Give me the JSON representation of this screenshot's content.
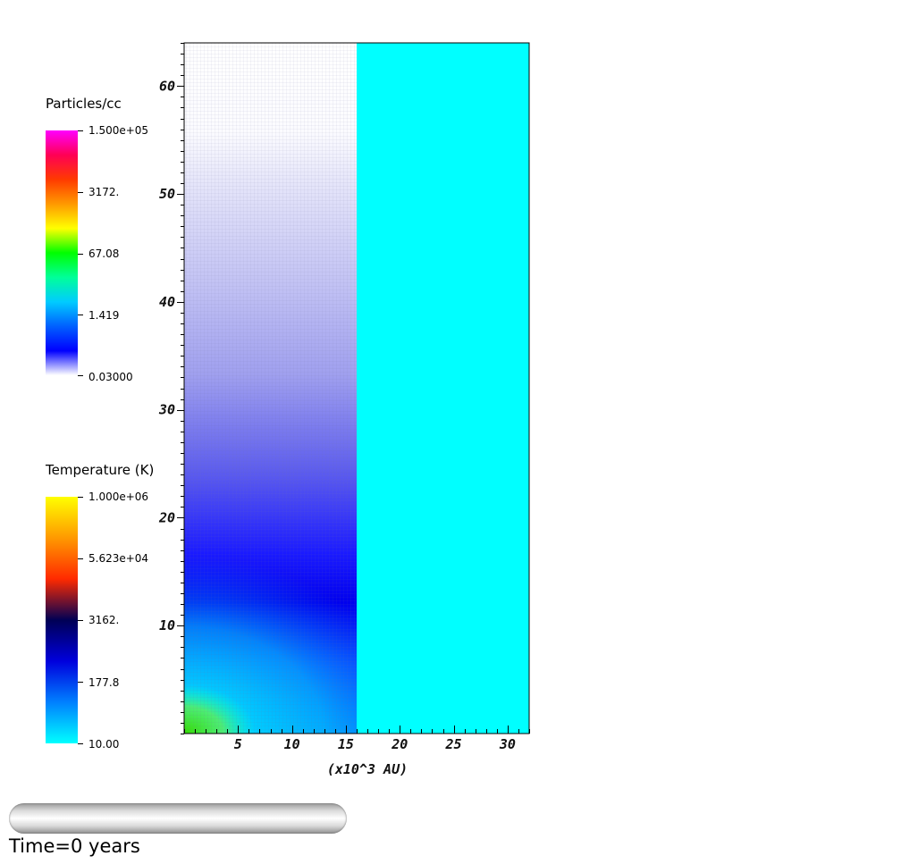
{
  "legends": {
    "density": {
      "title": "Particles/cc",
      "labels": [
        "1.500e+05",
        "3172.",
        "67.08",
        "1.419",
        "0.03000"
      ],
      "colors": [
        "#ff00ff",
        "#ff0055",
        "#ff3a00",
        "#ff9900",
        "#ffff00",
        "#00ff00",
        "#00ff99",
        "#00ccff",
        "#0060ff",
        "#0000ff",
        "#ffffff"
      ]
    },
    "temperature": {
      "title": "Temperature (K)",
      "labels": [
        "1.000e+06",
        "5.623e+04",
        "3162.",
        "177.8",
        "10.00"
      ],
      "colors": [
        "#ffff00",
        "#ff9900",
        "#ff2a00",
        "#000055",
        "#0000dd",
        "#0080ff",
        "#00ffff"
      ]
    }
  },
  "chart_data": {
    "type": "heatmap",
    "xlabel": "(x10^3 AU)",
    "ylabel": "",
    "xlim": [
      0,
      32
    ],
    "ylim": [
      0,
      64
    ],
    "xticks": [
      5,
      10,
      15,
      20,
      25,
      30
    ],
    "yticks": [
      10,
      20,
      30,
      40,
      50,
      60
    ],
    "left_panel": {
      "x_range": [
        0,
        16
      ],
      "quantity": "density",
      "colors": {
        "background": "#0000ff",
        "faint": "#ffffff",
        "core": "#33dd00",
        "halo": "#00ffff"
      }
    },
    "right_panel": {
      "x_range": [
        16,
        32
      ],
      "quantity": "temperature",
      "color": "#00ffff"
    }
  },
  "footer": {
    "time_label": "Time=0 years"
  }
}
